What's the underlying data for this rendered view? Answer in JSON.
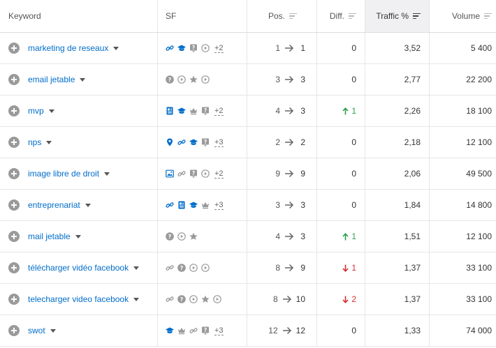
{
  "header": {
    "keyword": "Keyword",
    "sf": "SF",
    "pos": "Pos.",
    "diff": "Diff.",
    "traffic": "Traffic %",
    "volume": "Volume"
  },
  "colors": {
    "link": "#006dca",
    "icon_blue": "#006dca",
    "icon_gray": "#9a9a9a",
    "up": "#2aa14a",
    "down": "#d62d2d"
  },
  "rows": [
    {
      "keyword": "marketing de reseaux",
      "sf": [
        "link-icon",
        "graduation-cap-icon",
        "question-box-icon",
        "play-circle-icon"
      ],
      "sf_blue": [
        true,
        true,
        false,
        false
      ],
      "more": "+2",
      "pos_from": "1",
      "pos_to": "1",
      "diff": "0",
      "diff_dir": "none",
      "traffic": "3,52",
      "volume": "5 400"
    },
    {
      "keyword": "email jetable",
      "sf": [
        "question-circle-icon",
        "play-circle-icon",
        "star-icon",
        "play-circle-icon"
      ],
      "sf_blue": [
        false,
        false,
        false,
        false
      ],
      "more": "",
      "pos_from": "3",
      "pos_to": "3",
      "diff": "0",
      "diff_dir": "none",
      "traffic": "2,77",
      "volume": "22 200"
    },
    {
      "keyword": "mvp",
      "sf": [
        "document-icon",
        "graduation-cap-icon",
        "crown-icon",
        "question-box-icon"
      ],
      "sf_blue": [
        true,
        true,
        false,
        false
      ],
      "more": "+2",
      "pos_from": "4",
      "pos_to": "3",
      "diff": "1",
      "diff_dir": "up",
      "traffic": "2,26",
      "volume": "18 100"
    },
    {
      "keyword": "nps",
      "sf": [
        "map-pin-icon",
        "link-icon",
        "graduation-cap-icon",
        "question-box-icon"
      ],
      "sf_blue": [
        true,
        true,
        true,
        false
      ],
      "more": "+3",
      "pos_from": "2",
      "pos_to": "2",
      "diff": "0",
      "diff_dir": "none",
      "traffic": "2,18",
      "volume": "12 100"
    },
    {
      "keyword": "image libre de droit",
      "sf": [
        "image-icon",
        "link-icon",
        "question-box-icon",
        "play-circle-icon"
      ],
      "sf_blue": [
        true,
        false,
        false,
        false
      ],
      "more": "+2",
      "pos_from": "9",
      "pos_to": "9",
      "diff": "0",
      "diff_dir": "none",
      "traffic": "2,06",
      "volume": "49 500"
    },
    {
      "keyword": "entreprenariat",
      "sf": [
        "link-icon",
        "document-icon",
        "graduation-cap-icon",
        "crown-icon"
      ],
      "sf_blue": [
        true,
        true,
        true,
        false
      ],
      "more": "+3",
      "pos_from": "3",
      "pos_to": "3",
      "diff": "0",
      "diff_dir": "none",
      "traffic": "1,84",
      "volume": "14 800"
    },
    {
      "keyword": "mail jetable",
      "sf": [
        "question-circle-icon",
        "play-circle-icon",
        "star-icon"
      ],
      "sf_blue": [
        false,
        false,
        false
      ],
      "more": "",
      "pos_from": "4",
      "pos_to": "3",
      "diff": "1",
      "diff_dir": "up",
      "traffic": "1,51",
      "volume": "12 100"
    },
    {
      "keyword": "télécharger vidéo facebook",
      "sf": [
        "link-icon",
        "question-circle-icon",
        "play-circle-icon",
        "play-circle-icon"
      ],
      "sf_blue": [
        false,
        false,
        false,
        false
      ],
      "more": "",
      "pos_from": "8",
      "pos_to": "9",
      "diff": "1",
      "diff_dir": "down",
      "traffic": "1,37",
      "volume": "33 100"
    },
    {
      "keyword": "telecharger video facebook",
      "sf": [
        "link-icon",
        "question-circle-icon",
        "play-circle-icon",
        "star-icon",
        "play-circle-icon"
      ],
      "sf_blue": [
        false,
        false,
        false,
        false,
        false
      ],
      "more": "",
      "pos_from": "8",
      "pos_to": "10",
      "diff": "2",
      "diff_dir": "down",
      "traffic": "1,37",
      "volume": "33 100"
    },
    {
      "keyword": "swot",
      "sf": [
        "graduation-cap-icon",
        "crown-icon",
        "link-icon",
        "question-box-icon"
      ],
      "sf_blue": [
        true,
        false,
        false,
        false
      ],
      "more": "+3",
      "pos_from": "12",
      "pos_to": "12",
      "diff": "0",
      "diff_dir": "none",
      "traffic": "1,33",
      "volume": "74 000"
    }
  ]
}
